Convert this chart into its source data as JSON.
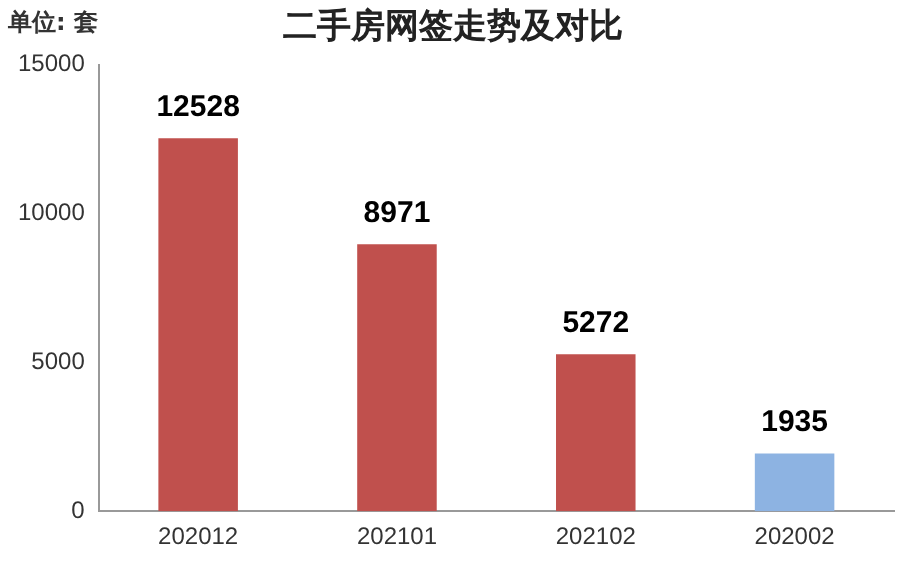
{
  "chart_data": {
    "type": "bar",
    "title": "二手房网签走势及对比",
    "annotations": [
      "单位: 套"
    ],
    "categories": [
      "202012",
      "202101",
      "202102",
      "202002"
    ],
    "values": [
      12528,
      8971,
      5272,
      1935
    ],
    "colors": [
      "#c0504d",
      "#c0504d",
      "#c0504d",
      "#8db3e2"
    ],
    "ylim": [
      0,
      15000
    ],
    "yticks": [
      0,
      5000,
      10000,
      15000
    ],
    "grid": false,
    "data_labels": true,
    "legend": false
  }
}
